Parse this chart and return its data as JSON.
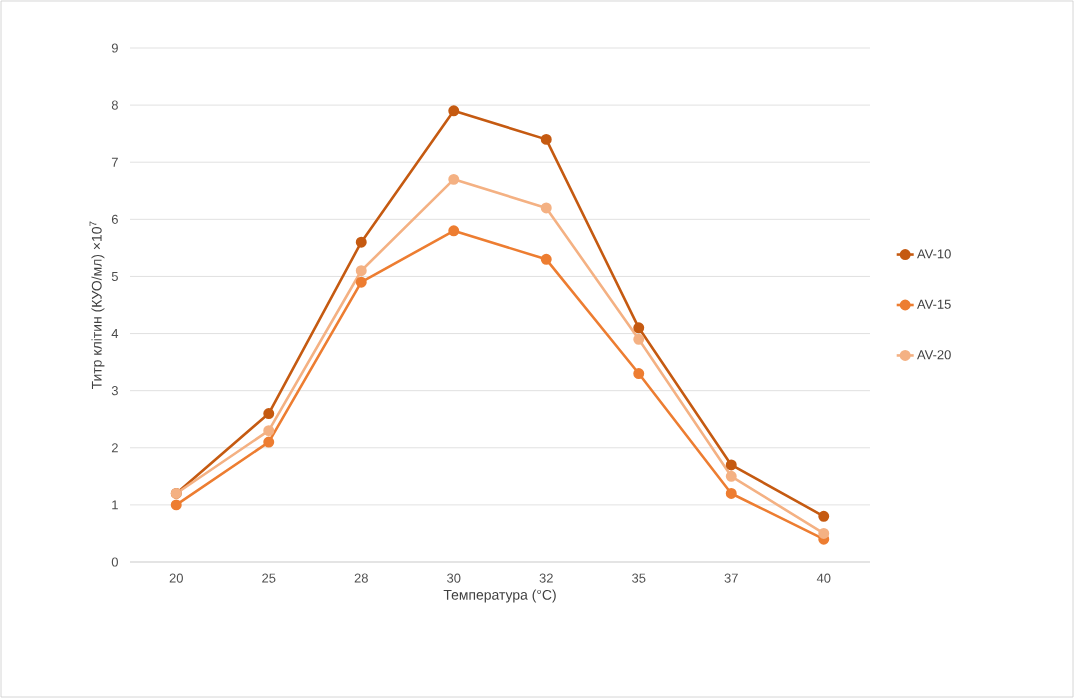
{
  "chart_data": {
    "type": "line",
    "xlabel": "Температура (°C)",
    "ylabel": "Титр клітин (КУО/мл) ×10$^{7}$",
    "categories": [
      "20",
      "25",
      "28",
      "30",
      "32",
      "35",
      "37",
      "40"
    ],
    "series": [
      {
        "name": "AV-10",
        "color": "#c55a11",
        "values": [
          1.2,
          2.6,
          5.6,
          7.9,
          7.4,
          4.1,
          1.7,
          0.8
        ]
      },
      {
        "name": "AV-15",
        "color": "#ed7d31",
        "values": [
          1.0,
          2.1,
          4.9,
          5.8,
          5.3,
          3.3,
          1.2,
          0.4
        ]
      },
      {
        "name": "AV-20",
        "color": "#f4b183",
        "values": [
          1.2,
          2.3,
          5.1,
          6.7,
          6.2,
          3.9,
          1.5,
          0.5
        ]
      }
    ],
    "ylim": [
      0,
      9
    ],
    "yticks": [
      0,
      1,
      2,
      3,
      4,
      5,
      6,
      7,
      8,
      9
    ],
    "grid": "y",
    "legend": "right",
    "marker": "circle",
    "line_style": "solid"
  }
}
